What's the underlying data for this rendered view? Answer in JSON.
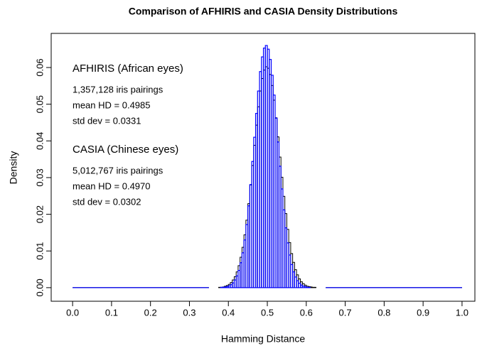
{
  "chart_data": {
    "type": "histogram",
    "title": "Comparison of AFHIRIS and CASIA Density Distributions",
    "xlabel": "Hamming Distance",
    "ylabel": "Density",
    "bins": [
      0.35,
      0.355,
      0.36,
      0.365,
      0.37,
      0.375,
      0.38,
      0.385,
      0.39,
      0.395,
      0.4,
      0.405,
      0.41,
      0.415,
      0.42,
      0.425,
      0.43,
      0.435,
      0.44,
      0.445,
      0.45,
      0.455,
      0.46,
      0.465,
      0.47,
      0.475,
      0.48,
      0.485,
      0.49,
      0.495,
      0.5,
      0.505,
      0.51,
      0.515,
      0.52,
      0.525,
      0.53,
      0.535,
      0.54,
      0.545,
      0.55,
      0.555,
      0.56,
      0.565,
      0.57,
      0.575,
      0.58,
      0.585,
      0.59,
      0.595,
      0.6,
      0.605,
      0.61,
      0.615,
      0.62,
      0.625,
      0.63,
      0.635,
      0.64,
      0.645,
      0.65
    ],
    "series": [
      {
        "name": "AFHIRIS (African eyes)",
        "color": "#000000",
        "lines": [
          "1,357,128 iris pairings",
          "mean HD =  0.4985",
          "std dev =  0.0331"
        ],
        "values": [
          0,
          0,
          0,
          0,
          0,
          0.0001,
          0.0001,
          0.0002,
          0.0004,
          0.0006,
          0.0009,
          0.0014,
          0.0021,
          0.003,
          0.0043,
          0.006,
          0.0083,
          0.011,
          0.0144,
          0.0184,
          0.0229,
          0.028,
          0.0333,
          0.0388,
          0.0443,
          0.0493,
          0.0536,
          0.057,
          0.0593,
          0.0602,
          0.0598,
          0.0581,
          0.0551,
          0.0511,
          0.0463,
          0.0411,
          0.0356,
          0.0301,
          0.0249,
          0.0202,
          0.0159,
          0.0123,
          0.0093,
          0.0069,
          0.0049,
          0.0035,
          0.0024,
          0.0016,
          0.0011,
          0.0007,
          0.0004,
          0.0003,
          0.0002,
          0.0001,
          0.0001,
          0,
          0,
          0,
          0,
          0
        ]
      },
      {
        "name": "CASIA (Chinese eyes)",
        "color": "#0000ff",
        "lines": [
          "5,012,767 iris pairings",
          "mean HD =  0.4970",
          "std dev =  0.0302"
        ],
        "values": [
          0,
          0,
          0,
          0,
          0,
          0,
          0.0001,
          0.0001,
          0.0002,
          0.0003,
          0.0005,
          0.0008,
          0.0013,
          0.0021,
          0.0032,
          0.0047,
          0.0068,
          0.0095,
          0.013,
          0.0172,
          0.0223,
          0.0281,
          0.0344,
          0.041,
          0.0475,
          0.0536,
          0.0589,
          0.0629,
          0.0653,
          0.066,
          0.065,
          0.0622,
          0.0579,
          0.0525,
          0.0462,
          0.0397,
          0.0331,
          0.0269,
          0.0212,
          0.0163,
          0.0122,
          0.0089,
          0.0063,
          0.0043,
          0.0029,
          0.0019,
          0.0012,
          0.0007,
          0.0004,
          0.0003,
          0.0001,
          0.0001,
          0,
          0,
          0,
          0,
          0,
          0,
          0,
          0
        ]
      }
    ],
    "xlim": [
      -0.055,
      1.033
    ],
    "ylim": [
      -0.0037,
      0.0693
    ],
    "xticks": [
      {
        "value": 0,
        "label": "0.0"
      },
      0.1,
      0.2,
      0.3,
      0.4,
      0.5,
      0.6,
      0.7,
      0.8,
      0.9,
      {
        "value": 1,
        "label": "1.0"
      }
    ],
    "yticks": [
      {
        "value": 0,
        "label": "0.00"
      },
      {
        "value": 0.01,
        "label": "0.01"
      },
      {
        "value": 0.02,
        "label": "0.02"
      },
      {
        "value": 0.03,
        "label": "0.03"
      },
      {
        "value": 0.04,
        "label": "0.04"
      },
      {
        "value": 0.05,
        "label": "0.05"
      },
      {
        "value": 0.06,
        "label": "0.06"
      }
    ]
  }
}
